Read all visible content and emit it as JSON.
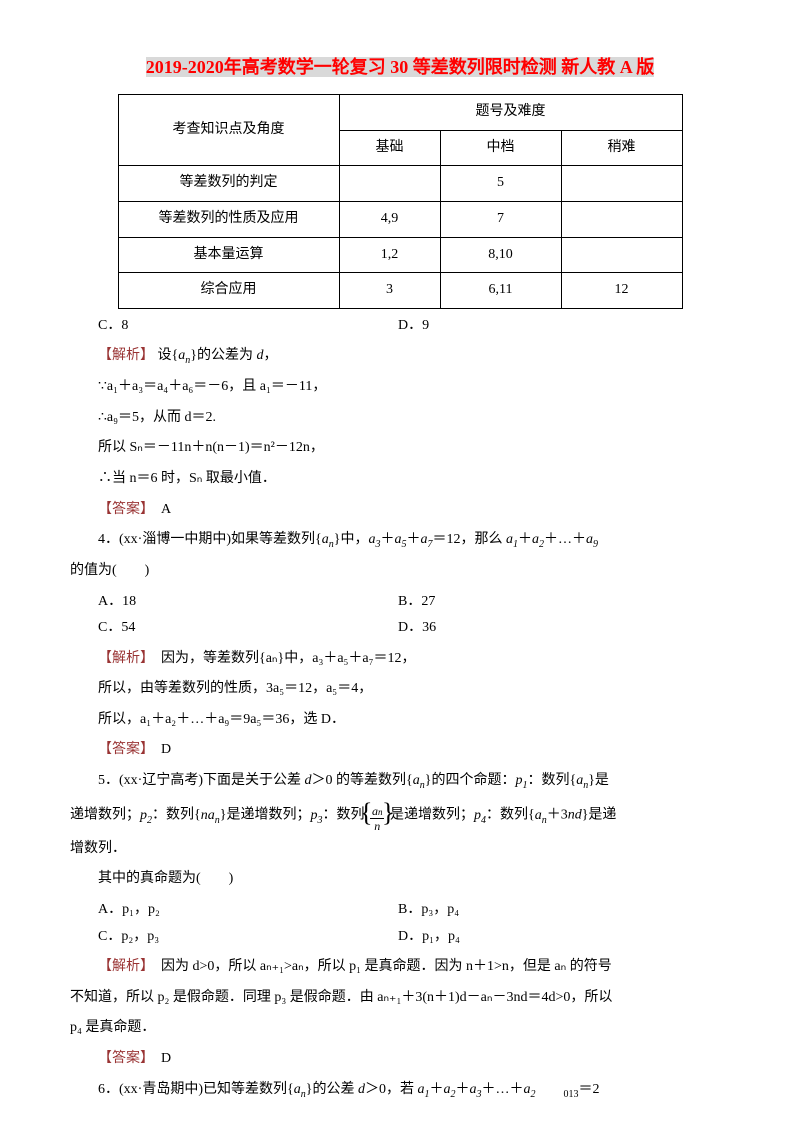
{
  "title": {
    "part1": "2019-2020",
    "part2": "年高考数学一轮复习 30 等差数列限时检测 新人教 A 版"
  },
  "table": {
    "header_main": "考查知识点及角度",
    "header_group": "题号及难度",
    "headers": [
      "基础",
      "中档",
      "稍难"
    ],
    "rows": [
      {
        "label": "等差数列的判定",
        "cells": [
          "",
          "5",
          ""
        ]
      },
      {
        "label": "等差数列的性质及应用",
        "cells": [
          "4,9",
          "7",
          ""
        ]
      },
      {
        "label": "基本量运算",
        "cells": [
          "1,2",
          "8,10",
          ""
        ]
      },
      {
        "label": "综合应用",
        "cells": [
          "3",
          "6,11",
          "12"
        ]
      }
    ]
  },
  "q_stray": {
    "c": "C．8",
    "d": "D．9"
  },
  "sol3": {
    "label": "【解析】",
    "line1_a": "设{",
    "line1_b": "}的公差为 ",
    "line1_c": "，",
    "line2": "∵a₁＋a₃＝a₄＋a₆＝－6，且 a₁＝－11，",
    "line3": "∴a₉＝5，从而 d＝2.",
    "line4": "所以 Sₙ＝－11n＋n(n－1)＝n²－12n，",
    "line5": "∴当 n＝6 时，Sₙ 取最小值．",
    "ans_label": "【答案】",
    "ans": "A"
  },
  "q4": {
    "stem_a": "4．(xx·淄博一中期中)如果等差数列{",
    "stem_b": "}中，",
    "stem_c": "＝12，那么 ",
    "stem_d": "的值为(　　)",
    "opts": {
      "a": "A．18",
      "b": "B．27",
      "c": "C．54",
      "d": "D．36"
    },
    "sol_label": "【解析】",
    "sol_line1": "因为，等差数列{aₙ}中，a₃＋a₅＋a₇＝12，",
    "sol_line2": "所以，由等差数列的性质，3a₅＝12，a₅＝4，",
    "sol_line3": "所以，a₁＋a₂＋…＋a₉＝9a₅＝36，选 D．",
    "ans_label": "【答案】",
    "ans": "D"
  },
  "q5": {
    "stem_a": "5．(xx·辽宁高考)下面是关于公差 ",
    "stem_b": "＞0 的等差数列{",
    "stem_c": "}的四个命题：",
    "stem_d": "：数列{",
    "stem_e": "}是",
    "line2_a": "递增数列；",
    "line2_b": "：数列{",
    "line2_c": "}是递增数列；",
    "line2_d": "：数列",
    "line2_e": "是递增数列；",
    "line2_f": "：数列{",
    "line2_g": "＋3",
    "line2_h": "}是递",
    "line3": "增数列．",
    "q": "其中的真命题为(　　)",
    "opts": {
      "a": "A．p₁，p₂",
      "b": "B．p₃，p₄",
      "c": "C．p₂，p₃",
      "d": "D．p₁，p₄"
    },
    "sol_label": "【解析】",
    "sol_a": "因为 d>0，所以 aₙ₊₁>aₙ，所以 p₁ 是真命题．因为 n＋1>n，但是 aₙ 的符号",
    "sol_b": "不知道，所以 p₂ 是假命题．同理 p₃ 是假命题．由 aₙ₊₁＋3(n＋1)d－aₙ－3nd＝4d>0，所以",
    "sol_c": "p₄ 是真命题．",
    "ans_label": "【答案】",
    "ans": "D"
  },
  "q6": {
    "stem_a": "6．(xx·青岛期中)已知等差数列{",
    "stem_b": "}的公差 ",
    "stem_c": "＞0，若 ",
    "stem_d": "＋…＋",
    "stem_sub": "013",
    "stem_e": "＝2"
  }
}
